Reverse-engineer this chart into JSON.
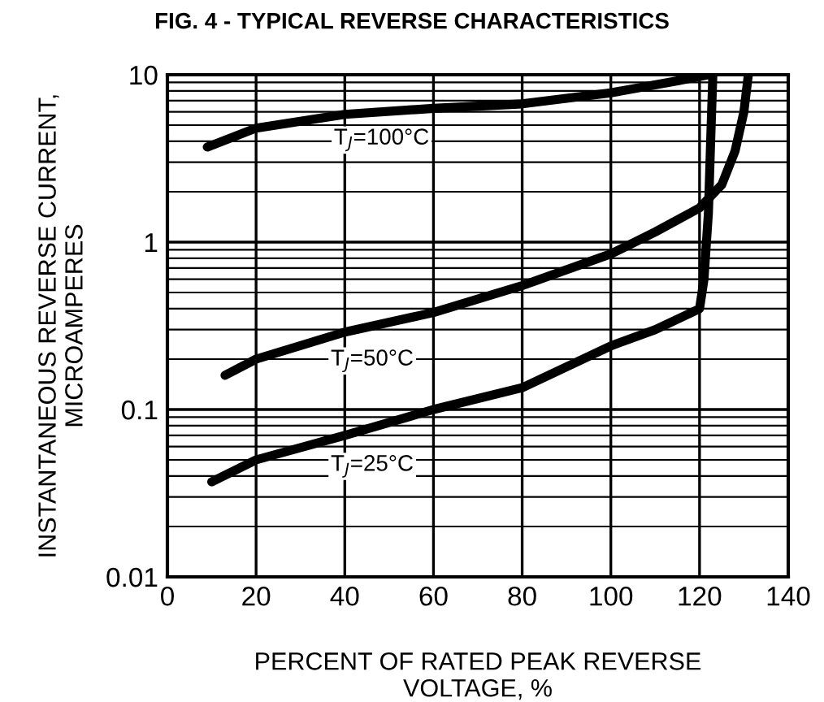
{
  "chart_data": {
    "type": "line",
    "title": "FIG. 4 - TYPICAL REVERSE CHARACTERISTICS",
    "xlabel": "PERCENT OF RATED PEAK REVERSE\nVOLTAGE, %",
    "ylabel": "INSTANTANEOUS REVERSE CURRENT,\nMICROAMPERES",
    "log": "y",
    "grid": true,
    "legend": false,
    "marker": "none",
    "line_style": "solid",
    "xlim": [
      0,
      140
    ],
    "xticks": [
      0,
      20,
      40,
      60,
      80,
      100,
      120,
      140
    ],
    "ylim": [
      0.01,
      10
    ],
    "yticks": [
      0.01,
      0.1,
      1,
      10
    ],
    "series": [
      {
        "color": "#000000",
        "x": [
          9,
          20,
          40,
          60,
          80,
          100,
          115,
          122
        ],
        "values": [
          3.7,
          4.8,
          5.8,
          6.3,
          6.7,
          7.8,
          9.2,
          10
        ]
      },
      {
        "color": "#000000",
        "x": [
          13,
          20,
          40,
          60,
          80,
          100,
          110,
          120,
          125,
          128,
          130,
          131
        ],
        "values": [
          0.16,
          0.2,
          0.29,
          0.38,
          0.55,
          0.85,
          1.15,
          1.6,
          2.2,
          3.5,
          6,
          10
        ]
      },
      {
        "color": "#000000",
        "x": [
          10,
          20,
          40,
          60,
          80,
          90,
          100,
          110,
          120,
          121,
          122,
          122.5,
          123
        ],
        "values": [
          0.037,
          0.05,
          0.07,
          0.1,
          0.135,
          0.18,
          0.24,
          0.3,
          0.4,
          0.6,
          1.5,
          4,
          10
        ]
      }
    ],
    "annotations": [
      "T$_{J}$=100°C",
      "T$_{J}$=50°C",
      "T$_{J}$=25°C"
    ]
  }
}
